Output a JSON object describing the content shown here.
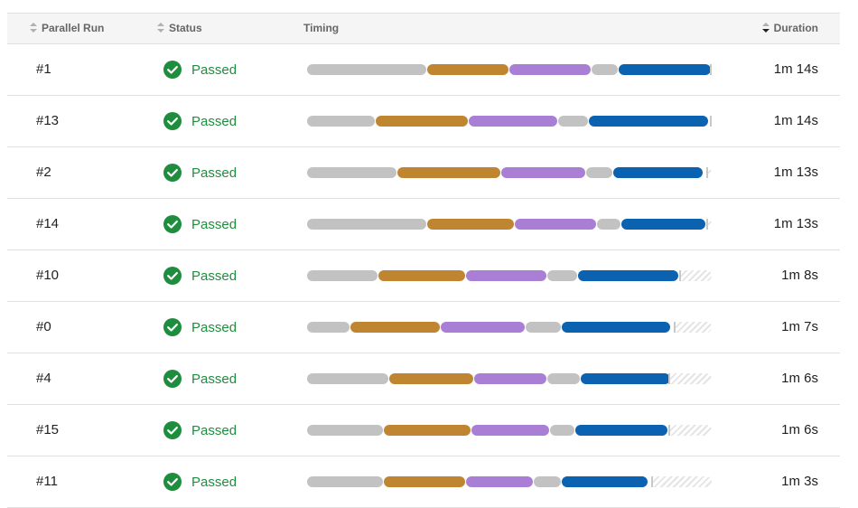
{
  "header": {
    "run_label": "Parallel Run",
    "status_label": "Status",
    "timing_label": "Timing",
    "duration_label": "Duration"
  },
  "colors": {
    "queue": "#c2c2c2",
    "setup": "#c08530",
    "build": "#a97fd6",
    "wait": "#c2c2c2",
    "test": "#0a62b0",
    "passed": "#1e8e3e"
  },
  "phase_order": [
    "queue",
    "setup",
    "build",
    "wait",
    "test"
  ],
  "timeline_max_seconds": 74,
  "rows": [
    {
      "run": "#1",
      "status": "Passed",
      "duration": "1m 14s",
      "duration_seconds": 74,
      "phases": [
        22,
        15,
        15,
        5,
        17
      ]
    },
    {
      "run": "#13",
      "status": "Passed",
      "duration": "1m 14s",
      "duration_seconds": 74,
      "phases": [
        12.5,
        17,
        16.5,
        5.5,
        22
      ]
    },
    {
      "run": "#2",
      "status": "Passed",
      "duration": "1m 13s",
      "duration_seconds": 73,
      "phases": [
        16.5,
        19,
        15.5,
        5,
        16.5
      ]
    },
    {
      "run": "#14",
      "status": "Passed",
      "duration": "1m 13s",
      "duration_seconds": 73,
      "phases": [
        22,
        16,
        15,
        4.5,
        15.5
      ]
    },
    {
      "run": "#10",
      "status": "Passed",
      "duration": "1m 8s",
      "duration_seconds": 68,
      "phases": [
        13,
        16,
        15,
        5.5,
        18.5
      ]
    },
    {
      "run": "#0",
      "status": "Passed",
      "duration": "1m 7s",
      "duration_seconds": 67,
      "phases": [
        8,
        16.5,
        15.5,
        6.5,
        20
      ]
    },
    {
      "run": "#4",
      "status": "Passed",
      "duration": "1m 6s",
      "duration_seconds": 66,
      "phases": [
        15,
        15.5,
        13.5,
        6,
        16.5
      ]
    },
    {
      "run": "#15",
      "status": "Passed",
      "duration": "1m 6s",
      "duration_seconds": 66,
      "phases": [
        14,
        16,
        14.5,
        4.5,
        17
      ]
    },
    {
      "run": "#11",
      "status": "Passed",
      "duration": "1m 3s",
      "duration_seconds": 63,
      "phases": [
        14,
        15,
        12.5,
        5,
        16
      ]
    }
  ]
}
